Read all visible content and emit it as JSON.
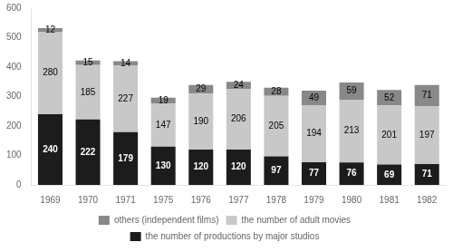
{
  "chart_data": {
    "type": "bar",
    "categories": [
      "1969",
      "1970",
      "1971",
      "1975",
      "1976",
      "1977",
      "1978",
      "1979",
      "1980",
      "1981",
      "1982"
    ],
    "series": [
      {
        "name": "the number of productions by major studios",
        "color": "#1c1c1c",
        "values": [
          240,
          222,
          179,
          130,
          120,
          120,
          97,
          77,
          76,
          69,
          71
        ]
      },
      {
        "name": "the number of adult movies",
        "color": "#c8c8c8",
        "values": [
          280,
          185,
          227,
          147,
          190,
          206,
          205,
          194,
          213,
          201,
          197
        ]
      },
      {
        "name": "others (independent films)",
        "color": "#888888",
        "values": [
          12,
          15,
          14,
          19,
          29,
          24,
          28,
          49,
          59,
          52,
          71
        ]
      }
    ],
    "stacked": true,
    "data_labels": true,
    "ylim": [
      0,
      600
    ],
    "yticks": [
      0,
      100,
      200,
      300,
      400,
      500,
      600
    ],
    "grid": false,
    "legend": "bottom"
  }
}
